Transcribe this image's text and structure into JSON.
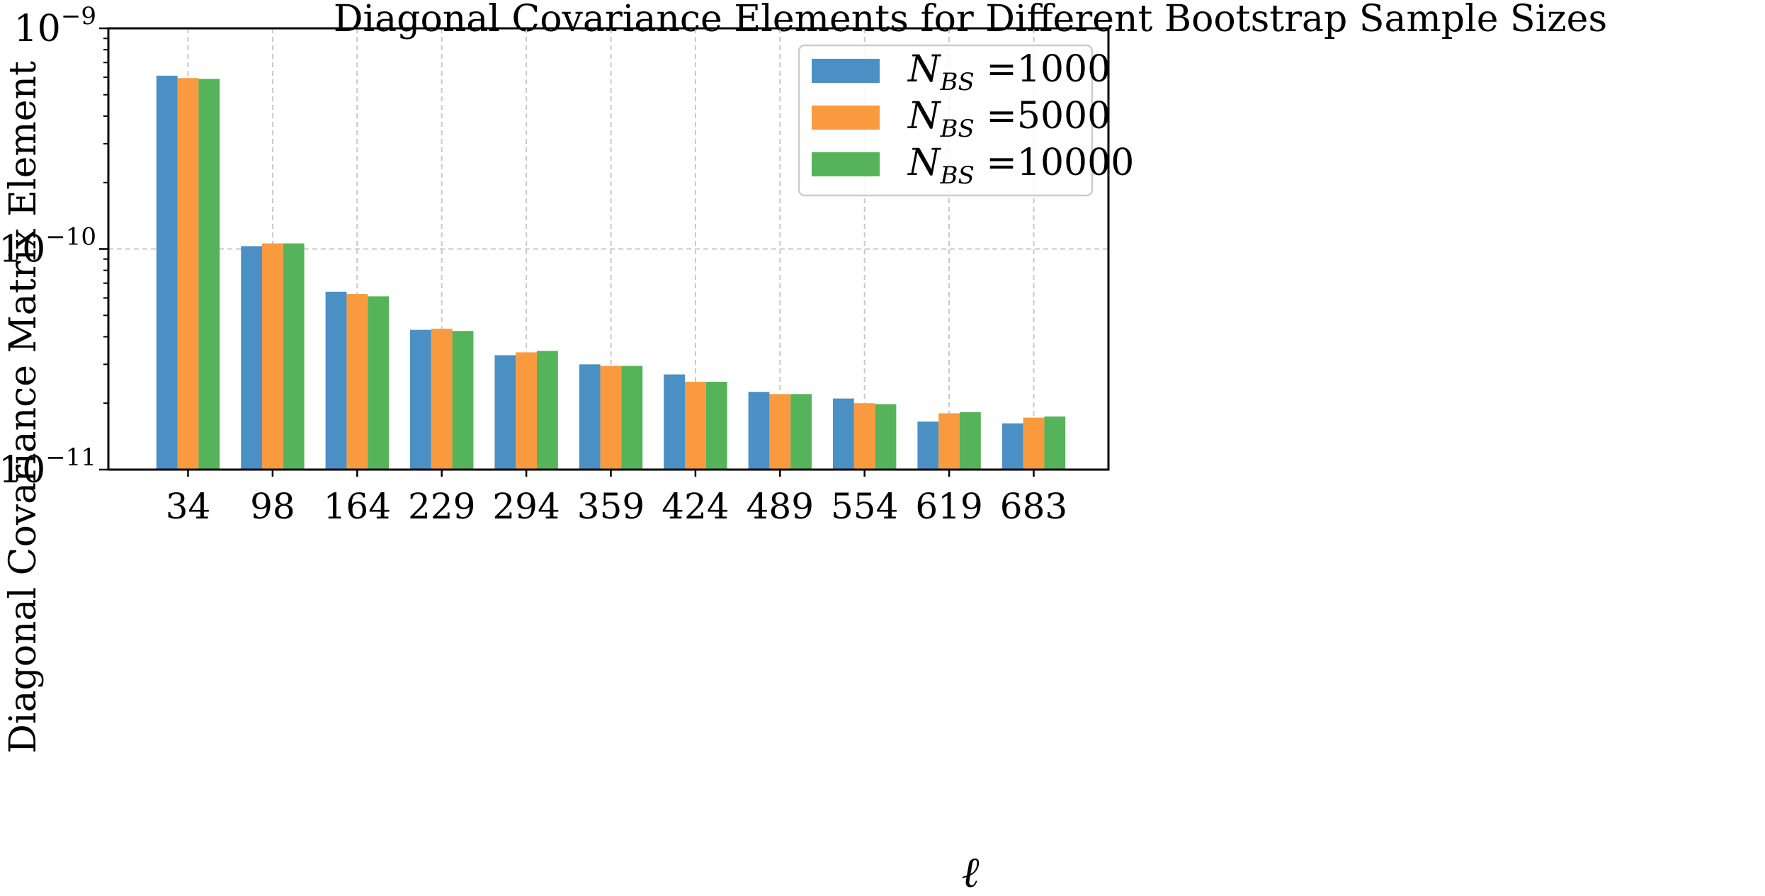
{
  "chart_data": {
    "type": "bar",
    "title": "Diagonal Covariance Elements for Different Bootstrap Sample Sizes",
    "xlabel": "ℓ",
    "ylabel": "Diagonal Covariance Matrix Element",
    "yscale": "log",
    "ylim": [
      1e-11,
      1e-09
    ],
    "ytick_labels": [
      {
        "base": "10",
        "exp": "−11",
        "value": 1e-11
      },
      {
        "base": "10",
        "exp": "−10",
        "value": 1e-10
      },
      {
        "base": "10",
        "exp": "−9",
        "value": 1e-09
      }
    ],
    "grid": true,
    "legend_position": "top-right",
    "categories": [
      "34",
      "98",
      "164",
      "229",
      "294",
      "359",
      "424",
      "489",
      "554",
      "619",
      "683"
    ],
    "series": [
      {
        "name": "N_BS =1000",
        "legend_main": "N",
        "legend_sub": "BS",
        "legend_value": " =1000",
        "color": "#4a90c4",
        "values": [
          6.1e-10,
          1.03e-10,
          6.4e-11,
          4.3e-11,
          3.3e-11,
          3e-11,
          2.7e-11,
          2.25e-11,
          2.1e-11,
          1.65e-11,
          1.62e-11
        ]
      },
      {
        "name": "N_BS =5000",
        "legend_main": "N",
        "legend_sub": "BS",
        "legend_value": " =5000",
        "color": "#f99a3f",
        "values": [
          5.95e-10,
          1.06e-10,
          6.25e-11,
          4.35e-11,
          3.4e-11,
          2.95e-11,
          2.5e-11,
          2.2e-11,
          2e-11,
          1.8e-11,
          1.72e-11
        ]
      },
      {
        "name": "N_BS =10000",
        "legend_main": "N",
        "legend_sub": "BS",
        "legend_value": " =10000",
        "color": "#55b35a",
        "values": [
          5.9e-10,
          1.06e-10,
          6.1e-11,
          4.25e-11,
          3.45e-11,
          2.95e-11,
          2.5e-11,
          2.2e-11,
          1.98e-11,
          1.82e-11,
          1.74e-11
        ]
      }
    ]
  }
}
